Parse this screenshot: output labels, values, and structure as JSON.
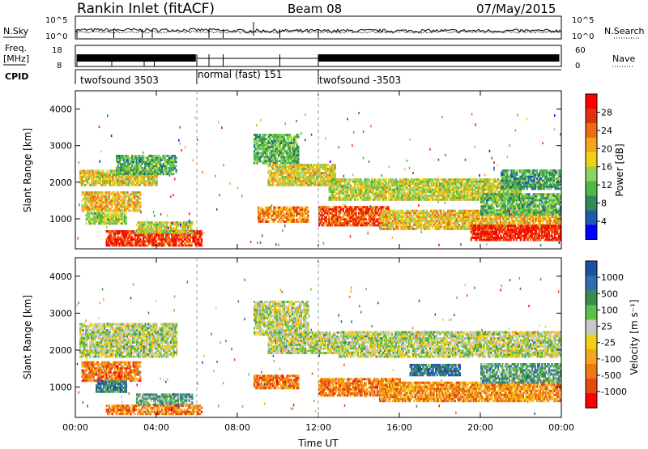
{
  "header": {
    "station": "Rankin Inlet (fitACF)",
    "beam": "Beam 08",
    "date": "07/May/2015"
  },
  "top_panels": {
    "nsky_label": "N.Sky",
    "nsearch_label": "N.Search",
    "noise_ticks": [
      "10^5",
      "10^0"
    ],
    "freq_label": "Freq.",
    "freq_unit": "[MHz]",
    "freq_ticks": [
      "18",
      "8"
    ],
    "nave_label": "Nave",
    "nave_ticks": [
      "60",
      "0"
    ],
    "cpid_label": "CPID",
    "cpid_segments": [
      {
        "label": "twofsound 3503",
        "start_hour": 0.0,
        "end_hour": 6.0
      },
      {
        "label": "normal (fast) 151",
        "start_hour": 6.0,
        "end_hour": 12.0
      },
      {
        "label": "twofsound -3503",
        "start_hour": 12.0,
        "end_hour": 24.0
      }
    ]
  },
  "colors": {
    "power": [
      "#0000ff",
      "#1f58b0",
      "#2e8b57",
      "#4cb848",
      "#8ad35c",
      "#f2d016",
      "#f7a51e",
      "#ef6b12",
      "#e03010",
      "#ff0000"
    ],
    "velocity": [
      "#1f4fa0",
      "#2f6fb0",
      "#3a8a52",
      "#5cc04a",
      "#c8c8c8",
      "#f2d016",
      "#f7a51e",
      "#ef7a12",
      "#e34a10",
      "#ff0000"
    ],
    "gray_scatter": "#c8c8c8"
  },
  "chart_data": [
    {
      "type": "heatmap",
      "name": "power",
      "ylabel": "Slant Range [km]",
      "xlabel": "",
      "xlim": [
        0,
        24
      ],
      "ylim": [
        180,
        4500
      ],
      "x_ticks": [
        "00:00",
        "04:00",
        "08:00",
        "12:00",
        "16:00",
        "20:00",
        "00:00"
      ],
      "y_ticks": [
        1000,
        2000,
        3000,
        4000
      ],
      "colorbar_label": "Power [dB]",
      "colorbar_ticks": [
        4,
        8,
        12,
        16,
        20,
        24,
        28
      ],
      "regions": [
        {
          "t0": 0.2,
          "t1": 4.0,
          "r0": 1900,
          "r1": 2300,
          "level": 0.55
        },
        {
          "t0": 0.3,
          "t1": 3.2,
          "r0": 1200,
          "r1": 1700,
          "level": 0.6
        },
        {
          "t0": 0.5,
          "t1": 2.5,
          "r0": 850,
          "r1": 1150,
          "level": 0.45
        },
        {
          "t0": 2.0,
          "t1": 5.0,
          "r0": 2200,
          "r1": 2700,
          "level": 0.35
        },
        {
          "t0": 1.5,
          "t1": 6.2,
          "r0": 250,
          "r1": 650,
          "level": 0.85
        },
        {
          "t0": 3.0,
          "t1": 5.8,
          "r0": 600,
          "r1": 900,
          "level": 0.5
        },
        {
          "t0": 8.8,
          "t1": 11.0,
          "r0": 2500,
          "r1": 3300,
          "level": 0.35
        },
        {
          "t0": 9.5,
          "t1": 12.8,
          "r0": 1900,
          "r1": 2500,
          "level": 0.55
        },
        {
          "t0": 9.0,
          "t1": 11.5,
          "r0": 900,
          "r1": 1300,
          "level": 0.7
        },
        {
          "t0": 12.0,
          "t1": 15.5,
          "r0": 800,
          "r1": 1300,
          "level": 0.8
        },
        {
          "t0": 12.5,
          "t1": 22.0,
          "r0": 1500,
          "r1": 2100,
          "level": 0.5
        },
        {
          "t0": 15.0,
          "t1": 24.0,
          "r0": 700,
          "r1": 1200,
          "level": 0.6
        },
        {
          "t0": 19.5,
          "t1": 24.0,
          "r0": 400,
          "r1": 800,
          "level": 0.9
        },
        {
          "t0": 20.0,
          "t1": 24.0,
          "r0": 1100,
          "r1": 1700,
          "level": 0.35
        },
        {
          "t0": 21.0,
          "t1": 24.0,
          "r0": 1800,
          "r1": 2300,
          "level": 0.3
        }
      ]
    },
    {
      "type": "heatmap",
      "name": "velocity",
      "ylabel": "Slant Range [km]",
      "xlabel": "Time UT",
      "xlim": [
        0,
        24
      ],
      "ylim": [
        180,
        4500
      ],
      "x_ticks": [
        "00:00",
        "04:00",
        "08:00",
        "12:00",
        "16:00",
        "20:00",
        "00:00"
      ],
      "y_ticks": [
        1000,
        2000,
        3000,
        4000
      ],
      "colorbar_label": "Velocity [m s⁻¹]",
      "colorbar_ticks": [
        1000,
        500,
        100,
        25,
        -25,
        -100,
        -500,
        -1000
      ],
      "regions": [
        {
          "t0": 0.2,
          "t1": 5.0,
          "r0": 1800,
          "r1": 2700,
          "level": 0.45
        },
        {
          "t0": 0.3,
          "t1": 3.2,
          "r0": 1150,
          "r1": 1700,
          "level": 0.75
        },
        {
          "t0": 1.0,
          "t1": 2.5,
          "r0": 850,
          "r1": 1150,
          "level": 0.2
        },
        {
          "t0": 3.0,
          "t1": 5.8,
          "r0": 500,
          "r1": 800,
          "level": 0.3
        },
        {
          "t0": 1.5,
          "t1": 6.2,
          "r0": 250,
          "r1": 500,
          "level": 0.75
        },
        {
          "t0": 8.8,
          "t1": 11.5,
          "r0": 2400,
          "r1": 3300,
          "level": 0.45
        },
        {
          "t0": 9.5,
          "t1": 13.0,
          "r0": 1900,
          "r1": 2500,
          "level": 0.45
        },
        {
          "t0": 8.8,
          "t1": 11.0,
          "r0": 950,
          "r1": 1300,
          "level": 0.75
        },
        {
          "t0": 12.0,
          "t1": 16.0,
          "r0": 750,
          "r1": 1200,
          "level": 0.75
        },
        {
          "t0": 13.0,
          "t1": 24.0,
          "r0": 1800,
          "r1": 2500,
          "level": 0.45
        },
        {
          "t0": 15.0,
          "t1": 24.0,
          "r0": 600,
          "r1": 1100,
          "level": 0.7
        },
        {
          "t0": 16.5,
          "t1": 19.0,
          "r0": 1300,
          "r1": 1600,
          "level": 0.15
        },
        {
          "t0": 20.0,
          "t1": 24.0,
          "r0": 1100,
          "r1": 1600,
          "level": 0.3
        }
      ]
    }
  ]
}
